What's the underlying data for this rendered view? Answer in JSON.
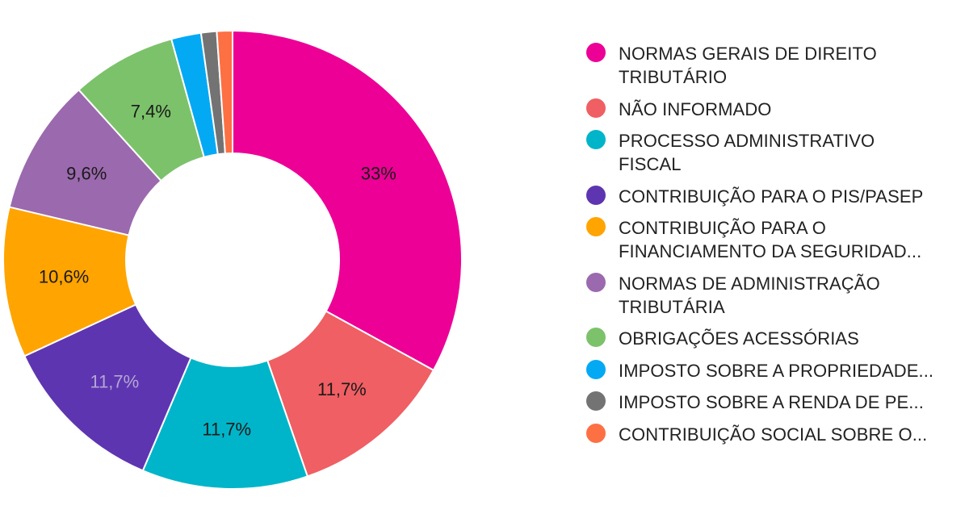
{
  "chart_data": {
    "type": "pie",
    "donut": true,
    "legend_position": "right",
    "series": [
      {
        "name": "NORMAS GERAIS DE DIREITO TRIBUTÁRIO",
        "legend_lines": [
          "NORMAS GERAIS DE DIREITO",
          "TRIBUTÁRIO"
        ],
        "value": 33.0,
        "label": "33%",
        "color": "#ec0096",
        "label_color": "#1a1a1a"
      },
      {
        "name": "NÃO INFORMADO",
        "legend_lines": [
          "NÃO INFORMADO"
        ],
        "value": 11.7,
        "label": "11,7%",
        "color": "#ef5f63",
        "label_color": "#1a1a1a"
      },
      {
        "name": "PROCESSO ADMINISTRATIVO FISCAL",
        "legend_lines": [
          "PROCESSO ADMINISTRATIVO",
          "FISCAL"
        ],
        "value": 11.7,
        "label": "11,7%",
        "color": "#00b5c9",
        "label_color": "#1a1a1a"
      },
      {
        "name": "CONTRIBUIÇÃO PARA O PIS/PASEP",
        "legend_lines": [
          "CONTRIBUIÇÃO PARA O PIS/PASEP"
        ],
        "value": 11.7,
        "label": "11,7%",
        "color": "#5e35b1",
        "label_color": "#b3a7d4"
      },
      {
        "name": "CONTRIBUIÇÃO PARA O FINANCIAMENTO DA SEGURIDAD...",
        "legend_lines": [
          "CONTRIBUIÇÃO PARA O",
          "FINANCIAMENTO DA SEGURIDAD..."
        ],
        "value": 10.6,
        "label": "10,6%",
        "color": "#ffa400",
        "label_color": "#1a1a1a"
      },
      {
        "name": "NORMAS DE ADMINISTRAÇÃO TRIBUTÁRIA",
        "legend_lines": [
          "NORMAS DE ADMINISTRAÇÃO",
          "TRIBUTÁRIA"
        ],
        "value": 9.6,
        "label": "9,6%",
        "color": "#9b69ae",
        "label_color": "#1a1a1a"
      },
      {
        "name": "OBRIGAÇÕES ACESSÓRIAS",
        "legend_lines": [
          "OBRIGAÇÕES ACESSÓRIAS"
        ],
        "value": 7.4,
        "label": "7,4%",
        "color": "#7cc26b",
        "label_color": "#1a1a1a"
      },
      {
        "name": "IMPOSTO SOBRE A PROPRIEDADE...",
        "legend_lines": [
          "IMPOSTO SOBRE A PROPRIEDADE..."
        ],
        "value": 2.1,
        "label": "",
        "color": "#04a9f4",
        "label_color": "#1a1a1a"
      },
      {
        "name": "IMPOSTO SOBRE A RENDA DE PE...",
        "legend_lines": [
          "IMPOSTO SOBRE A RENDA DE PE..."
        ],
        "value": 1.1,
        "label": "",
        "color": "#737373",
        "label_color": "#1a1a1a"
      },
      {
        "name": "CONTRIBUIÇÃO SOCIAL SOBRE O...",
        "legend_lines": [
          "CONTRIBUIÇÃO SOCIAL SOBRE O..."
        ],
        "value": 1.1,
        "label": "",
        "color": "#fd7043",
        "label_color": "#1a1a1a"
      }
    ]
  }
}
